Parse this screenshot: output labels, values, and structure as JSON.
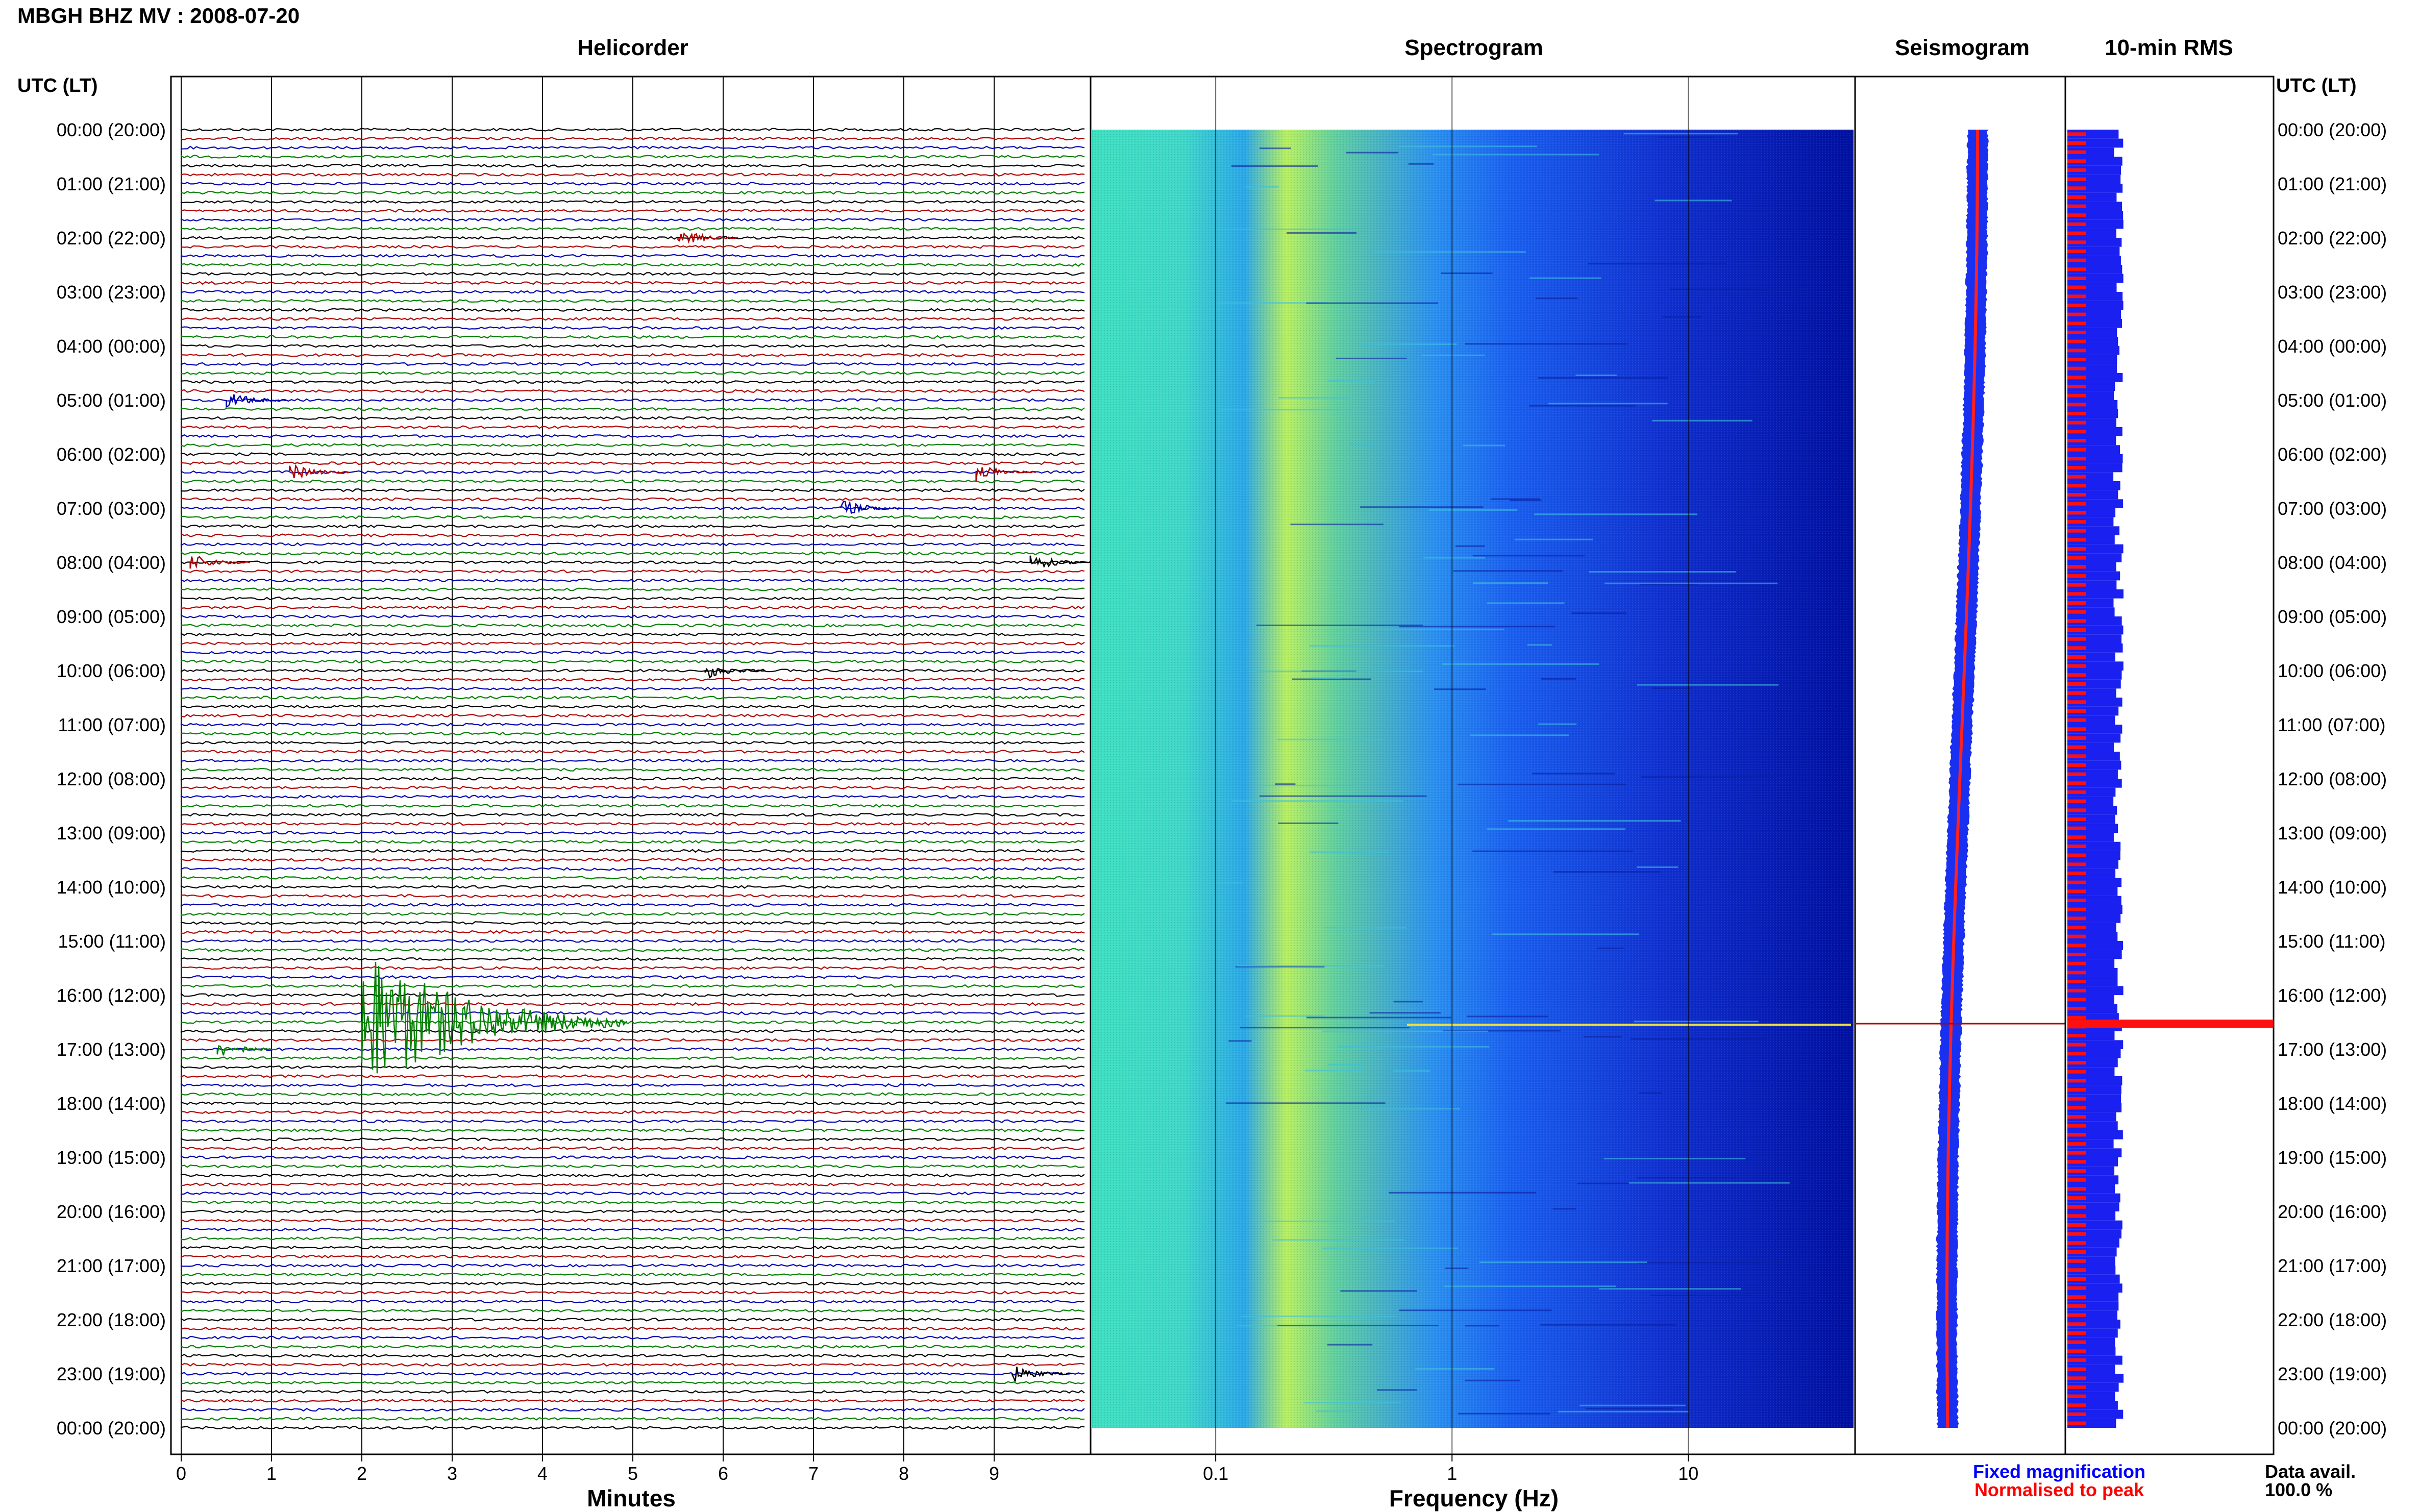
{
  "chart_data": {
    "type": "line",
    "title": "MBGH BHZ MV : 2008-07-20",
    "panels": {
      "helicorder": "Helicorder",
      "spectrogram": "Spectrogram",
      "seismogram": "Seismogram",
      "rms": "10-min RMS"
    },
    "time_axis_label": "UTC (LT)",
    "time_ticks": [
      "00:00 (20:00)",
      "01:00 (21:00)",
      "02:00 (22:00)",
      "03:00 (23:00)",
      "04:00 (00:00)",
      "05:00 (01:00)",
      "06:00 (02:00)",
      "07:00 (03:00)",
      "08:00 (04:00)",
      "09:00 (05:00)",
      "10:00 (06:00)",
      "11:00 (07:00)",
      "12:00 (08:00)",
      "13:00 (09:00)",
      "14:00 (10:00)",
      "15:00 (11:00)",
      "16:00 (12:00)",
      "17:00 (13:00)",
      "18:00 (14:00)",
      "19:00 (15:00)",
      "20:00 (16:00)",
      "21:00 (17:00)",
      "22:00 (18:00)",
      "23:00 (19:00)",
      "00:00 (20:00)"
    ],
    "helicorder_xlabel": "Minutes",
    "helicorder_xticks": [
      "0",
      "1",
      "2",
      "3",
      "4",
      "5",
      "6",
      "7",
      "8",
      "9"
    ],
    "helicorder_xlim": [
      0,
      10
    ],
    "helicorder_line_colors": [
      "#000000",
      "#b00000",
      "#0000b0",
      "#008000"
    ],
    "spectrogram_xlabel": "Frequency (Hz)",
    "spectrogram_xticks": [
      "0.1",
      "1",
      "10"
    ],
    "spectrogram_xlim": [
      0.03,
      50
    ],
    "spectrogram_xscale": "log",
    "events": [
      {
        "time": "02:00",
        "minute": 5.5,
        "color": "#b00000"
      },
      {
        "time": "05:00",
        "minute": 0.5,
        "color": "#0000b0"
      },
      {
        "time": "06:20",
        "minute": 1.2,
        "color": "#b00000"
      },
      {
        "time": "06:20",
        "minute": 8.8,
        "color": "#b00000"
      },
      {
        "time": "07:00",
        "minute": 7.3,
        "color": "#0000b0"
      },
      {
        "time": "08:00",
        "minute": 0.1,
        "color": "#b00000"
      },
      {
        "time": "08:00",
        "minute": 9.4,
        "color": "#000000"
      },
      {
        "time": "10:00",
        "minute": 5.8,
        "color": "#000000"
      },
      {
        "time": "16:30",
        "minute": 2.0,
        "color": "#008000"
      },
      {
        "time": "17:00",
        "minute": 0.4,
        "color": "#008000"
      },
      {
        "time": "23:00",
        "minute": 9.2,
        "color": "#000000"
      }
    ],
    "legend": {
      "fixed": "Fixed magnification",
      "normalised": "Normalised to peak",
      "fixed_color": "#0000ff",
      "normalised_color": "#ff0000"
    },
    "data_avail_label": "Data avail.",
    "data_avail_value": "100.0 %"
  }
}
